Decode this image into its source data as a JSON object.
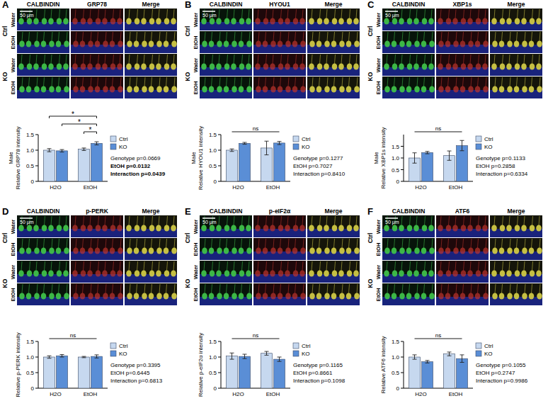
{
  "chart_data": [
    {
      "type": "bar",
      "panel": "A",
      "channels": [
        "CALBINDIN",
        "GRP78",
        "Merge"
      ],
      "scale_bar": "50 μm",
      "image_rows": {
        "genotypes": [
          "Ctrl",
          "KO"
        ],
        "treatments": [
          "Water",
          "EtOH"
        ]
      },
      "y_label": [
        "Male",
        "Relative GRP78 intensity"
      ],
      "categories": [
        "H2O",
        "EtOH"
      ],
      "series": [
        {
          "name": "Ctrl",
          "color": "#c6d8ef",
          "values": [
            1.0,
            1.03
          ],
          "errors": [
            0.05,
            0.04
          ]
        },
        {
          "name": "KO",
          "color": "#5a8ed6",
          "values": [
            0.98,
            1.22
          ],
          "errors": [
            0.04,
            0.05
          ]
        }
      ],
      "ylim": [
        0,
        1.5
      ],
      "yticks": [
        0,
        0.5,
        {
          "value": 1,
          "label": "1.0"
        },
        1.5
      ],
      "legend": "right",
      "comparisons": [
        {
          "between": [
            [
              "Ctrl",
              "EtOH"
            ],
            [
              "KO",
              "EtOH"
            ]
          ],
          "label": "*"
        },
        {
          "between": [
            [
              "KO",
              "H2O"
            ],
            [
              "KO",
              "EtOH"
            ]
          ],
          "label": "*"
        },
        {
          "between": [
            [
              "Ctrl",
              "H2O"
            ],
            [
              "KO",
              "EtOH"
            ]
          ],
          "label": "*"
        }
      ],
      "annotations": [
        {
          "text": "Genotype p=0.0669",
          "bold": false
        },
        {
          "text": "EtOH p=0.0132",
          "bold": true
        },
        {
          "text": "Interaction p=0.0439",
          "bold": true
        }
      ]
    },
    {
      "type": "bar",
      "panel": "B",
      "channels": [
        "CALBINDIN",
        "HYOU1",
        "Merge"
      ],
      "scale_bar": "50 μm",
      "image_rows": {
        "genotypes": [
          "Ctrl",
          "KO"
        ],
        "treatments": [
          "Water",
          "EtOH"
        ]
      },
      "y_label": [
        "Male",
        "Relative HYOU1 intensity"
      ],
      "categories": [
        "H2O",
        "EtOH"
      ],
      "series": [
        {
          "name": "Ctrl",
          "color": "#c6d8ef",
          "values": [
            1.0,
            1.07
          ],
          "errors": [
            0.04,
            0.22
          ]
        },
        {
          "name": "KO",
          "color": "#5a8ed6",
          "values": [
            1.22,
            1.23
          ],
          "errors": [
            0.03,
            0.05
          ]
        }
      ],
      "ylim": [
        0,
        1.5
      ],
      "yticks": [
        0,
        0.5,
        {
          "value": 1,
          "label": "1.0"
        },
        1.5
      ],
      "legend": "right",
      "comparisons": [
        {
          "between": [
            [
              "Ctrl",
              "H2O"
            ],
            [
              "KO",
              "EtOH"
            ]
          ],
          "label": "ns"
        }
      ],
      "annotations": [
        {
          "text": "Genotype p=0.1277",
          "bold": false
        },
        {
          "text": "EtOH p=0.7027",
          "bold": false
        },
        {
          "text": "Interaction p=0.8410",
          "bold": false
        }
      ]
    },
    {
      "type": "bar",
      "panel": "C",
      "channels": [
        "CALBINDIN",
        "XBP1s",
        "Merge"
      ],
      "scale_bar": "50 μm",
      "image_rows": {
        "genotypes": [
          "Ctrl",
          "KO"
        ],
        "treatments": [
          "Water",
          "EtOH"
        ]
      },
      "y_label": [
        "Male",
        "Relative XBP1s intensity"
      ],
      "categories": [
        "H2O",
        "EtOH"
      ],
      "series": [
        {
          "name": "Ctrl",
          "color": "#c6d8ef",
          "values": [
            1.0,
            1.1
          ],
          "errors": [
            0.22,
            0.2
          ]
        },
        {
          "name": "KO",
          "color": "#5a8ed6",
          "values": [
            1.23,
            1.53
          ],
          "errors": [
            0.05,
            0.22
          ]
        }
      ],
      "ylim": [
        0,
        2
      ],
      "yticks": [
        0,
        0.5,
        {
          "value": 1,
          "label": "1.0"
        },
        1.5
      ],
      "legend": "right",
      "comparisons": [
        {
          "between": [
            [
              "Ctrl",
              "H2O"
            ],
            [
              "KO",
              "EtOH"
            ]
          ],
          "label": "ns"
        }
      ],
      "annotations": [
        {
          "text": "Genotype p=0.1133",
          "bold": false
        },
        {
          "text": "EtOH p=0.2858",
          "bold": false
        },
        {
          "text": "Interaction p=0.6334",
          "bold": false
        }
      ]
    },
    {
      "type": "bar",
      "panel": "D",
      "channels": [
        "CALBINDIN",
        "p-PERK",
        "Merge"
      ],
      "scale_bar": "50 μm",
      "image_rows": {
        "genotypes": [
          "Ctrl",
          "KO"
        ],
        "treatments": [
          "Water",
          "EtOH"
        ]
      },
      "y_label": [
        "Relative p-PERK intensity"
      ],
      "categories": [
        "H2O",
        "EtOH"
      ],
      "series": [
        {
          "name": "Ctrl",
          "color": "#c6d8ef",
          "values": [
            1.0,
            1.0
          ],
          "errors": [
            0.04,
            0.02
          ]
        },
        {
          "name": "KO",
          "color": "#5a8ed6",
          "values": [
            1.04,
            1.02
          ],
          "errors": [
            0.04,
            0.05
          ]
        }
      ],
      "ylim": [
        0,
        1.5
      ],
      "yticks": [
        0,
        0.5,
        {
          "value": 1,
          "label": "1.0"
        },
        1.5
      ],
      "legend": "right",
      "comparisons": [
        {
          "between": [
            [
              "Ctrl",
              "H2O"
            ],
            [
              "KO",
              "EtOH"
            ]
          ],
          "label": "ns"
        }
      ],
      "annotations": [
        {
          "text": "Genotype p=0.3395",
          "bold": false
        },
        {
          "text": "EtOH p=0.6445",
          "bold": false
        },
        {
          "text": "Interaction p=0.6813",
          "bold": false
        }
      ]
    },
    {
      "type": "bar",
      "panel": "E",
      "channels": [
        "CALBINDIN",
        "p-eIF2α",
        "Merge"
      ],
      "scale_bar": "50 μm",
      "image_rows": {
        "genotypes": [
          "Ctrl",
          "KO"
        ],
        "treatments": [
          "Water",
          "EtOH"
        ]
      },
      "y_label": [
        "Relative p-eIF2α intensity"
      ],
      "categories": [
        "H2O",
        "EtOH"
      ],
      "series": [
        {
          "name": "Ctrl",
          "color": "#c6d8ef",
          "values": [
            1.03,
            1.12
          ],
          "errors": [
            0.1,
            0.06
          ]
        },
        {
          "name": "KO",
          "color": "#5a8ed6",
          "values": [
            1.02,
            0.93
          ],
          "errors": [
            0.07,
            0.07
          ]
        }
      ],
      "ylim": [
        0,
        1.5
      ],
      "yticks": [
        0,
        0.5,
        {
          "value": 1,
          "label": "1.0"
        },
        1.5
      ],
      "legend": "right",
      "comparisons": [
        {
          "between": [
            [
              "Ctrl",
              "H2O"
            ],
            [
              "KO",
              "EtOH"
            ]
          ],
          "label": "ns"
        }
      ],
      "annotations": [
        {
          "text": "Genotype p=0.1165",
          "bold": false
        },
        {
          "text": "EtOH p=0.8661",
          "bold": false
        },
        {
          "text": "Interaction p=0.1098",
          "bold": false
        }
      ]
    },
    {
      "type": "bar",
      "panel": "F",
      "channels": [
        "CALBINDIN",
        "ATF6",
        "Merge"
      ],
      "scale_bar": "50 μm",
      "image_rows": {
        "genotypes": [
          "Ctrl",
          "KO"
        ],
        "treatments": [
          "Water",
          "EtOH"
        ]
      },
      "y_label": [
        "Relative ATF6 intensity"
      ],
      "categories": [
        "H2O",
        "EtOH"
      ],
      "series": [
        {
          "name": "Ctrl",
          "color": "#c6d8ef",
          "values": [
            1.0,
            1.1
          ],
          "errors": [
            0.07,
            0.06
          ]
        },
        {
          "name": "KO",
          "color": "#5a8ed6",
          "values": [
            0.85,
            0.95
          ],
          "errors": [
            0.04,
            0.12
          ]
        }
      ],
      "ylim": [
        0,
        1.5
      ],
      "yticks": [
        0,
        0.5,
        {
          "value": 1,
          "label": "1.0"
        },
        1.5
      ],
      "legend": "right",
      "comparisons": [
        {
          "between": [
            [
              "Ctrl",
              "H2O"
            ],
            [
              "KO",
              "EtOH"
            ]
          ],
          "label": "ns"
        }
      ],
      "annotations": [
        {
          "text": "Genotype p=0.1055",
          "bold": false
        },
        {
          "text": "EtOH p=0.2747",
          "bold": false
        },
        {
          "text": "Interaction p=0.9986",
          "bold": false
        }
      ]
    }
  ]
}
